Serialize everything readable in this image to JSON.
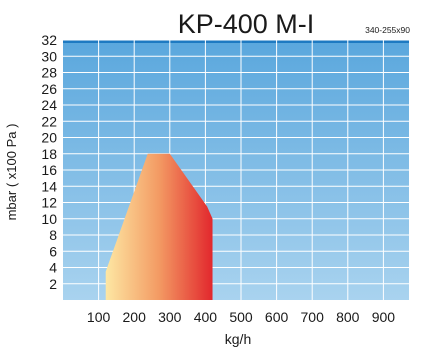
{
  "chart_data": {
    "type": "area",
    "title": "KP-400 M-I",
    "subtitle": "340-255x90",
    "xlabel": "kg/h",
    "ylabel": "mbar ( x100 Pa )",
    "x_ticks": [
      100,
      200,
      300,
      400,
      500,
      600,
      700,
      800,
      900
    ],
    "y_ticks": [
      2,
      4,
      6,
      8,
      10,
      12,
      14,
      16,
      18,
      20,
      22,
      24,
      26,
      28,
      30,
      32
    ],
    "xlim": [
      0,
      1000
    ],
    "ylim": [
      0,
      32
    ],
    "grid": true,
    "legend": "none",
    "series": [
      {
        "values": [
          {
            "x": 120,
            "y": 0
          },
          {
            "x": 120,
            "y": 3.5
          },
          {
            "x": 238,
            "y": 18
          },
          {
            "x": 300,
            "y": 18
          },
          {
            "x": 405,
            "y": 11.5
          },
          {
            "x": 420,
            "y": 10
          },
          {
            "x": 420,
            "y": 0
          }
        ]
      }
    ],
    "colors": {
      "plot_top": "#5aa7dd",
      "plot_bottom": "#a9d3ef",
      "top_band": "#1e7ac2",
      "fill_start": "#fde7a3",
      "fill_mid": "#f39a63",
      "fill_end": "#e2272d",
      "grid": "#ffffff",
      "text": "#1a1a1a"
    }
  }
}
